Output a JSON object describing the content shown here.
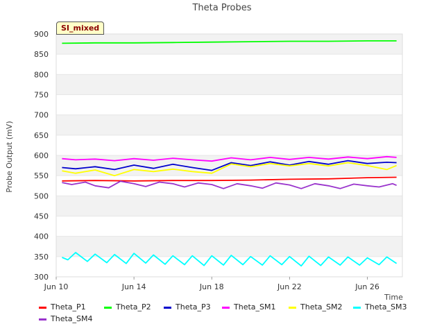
{
  "chart_data": {
    "type": "line",
    "title": "Theta Probes",
    "xlabel": "Time",
    "ylabel": "Probe Output (mV)",
    "ylim": [
      300,
      900
    ],
    "y_ticks": [
      "300",
      "350",
      "400",
      "450",
      "500",
      "550",
      "600",
      "650",
      "700",
      "750",
      "800",
      "850",
      "900"
    ],
    "x_ticks": [
      {
        "label": "Jun 10",
        "day": 10
      },
      {
        "label": "Jun 14",
        "day": 14
      },
      {
        "label": "Jun 18",
        "day": 18
      },
      {
        "label": "Jun 22",
        "day": 22
      },
      {
        "label": "Jun 26",
        "day": 26
      }
    ],
    "xlim_days": [
      10,
      27.8
    ],
    "grid": "horizontal alternating bands",
    "legend_position": "bottom",
    "badge": "SI_mixed",
    "series": [
      {
        "name": "Theta_P1",
        "color": "#ff0000",
        "x_days": [
          10.3,
          12,
          14,
          16,
          18,
          20,
          22,
          24,
          26,
          27.5
        ],
        "values": [
          537,
          538,
          537,
          538,
          538,
          539,
          541,
          542,
          545,
          546
        ]
      },
      {
        "name": "Theta_P2",
        "color": "#00ff00",
        "x_days": [
          10.3,
          12,
          14,
          16,
          18,
          20,
          22,
          24,
          26,
          27.5
        ],
        "values": [
          877,
          878,
          878,
          879,
          880,
          881,
          882,
          882,
          883,
          883
        ]
      },
      {
        "name": "Theta_P3",
        "color": "#0000cc",
        "x_days": [
          10.3,
          11,
          12,
          13,
          14,
          15,
          16,
          17,
          18,
          19,
          20,
          21,
          22,
          23,
          24,
          25,
          26,
          27,
          27.5
        ],
        "values": [
          570,
          567,
          572,
          565,
          576,
          568,
          578,
          570,
          563,
          582,
          575,
          584,
          576,
          585,
          578,
          587,
          580,
          583,
          582
        ]
      },
      {
        "name": "Theta_SM1",
        "color": "#ff00ff",
        "x_days": [
          10.3,
          11,
          12,
          13,
          14,
          15,
          16,
          17,
          18,
          19,
          20,
          21,
          22,
          23,
          24,
          25,
          26,
          27,
          27.5
        ],
        "values": [
          592,
          589,
          591,
          587,
          592,
          588,
          593,
          589,
          586,
          594,
          589,
          595,
          590,
          595,
          591,
          596,
          592,
          597,
          595
        ]
      },
      {
        "name": "Theta_SM2",
        "color": "#ffff00",
        "x_days": [
          10.3,
          11,
          12,
          13,
          14,
          15,
          16,
          17,
          18,
          19,
          20,
          21,
          22,
          23,
          24,
          25,
          26,
          27,
          27.5
        ],
        "values": [
          562,
          556,
          564,
          550,
          565,
          560,
          566,
          560,
          556,
          579,
          572,
          580,
          574,
          580,
          574,
          582,
          575,
          565,
          575
        ]
      },
      {
        "name": "Theta_SM3",
        "color": "#00ffff",
        "x_days": [
          10.3,
          10.6,
          11,
          11.6,
          12,
          12.6,
          13,
          13.6,
          14,
          14.6,
          15,
          15.6,
          16,
          16.6,
          17,
          17.6,
          18,
          18.6,
          19,
          19.6,
          20,
          20.6,
          21,
          21.6,
          22,
          22.6,
          23,
          23.6,
          24,
          24.6,
          25,
          25.6,
          26,
          26.6,
          27,
          27.5
        ],
        "values": [
          348,
          342,
          360,
          338,
          356,
          335,
          355,
          333,
          358,
          334,
          354,
          331,
          352,
          330,
          352,
          328,
          352,
          329,
          353,
          330,
          350,
          329,
          352,
          330,
          350,
          327,
          351,
          328,
          349,
          329,
          349,
          329,
          347,
          330,
          349,
          333
        ]
      },
      {
        "name": "Theta_SM4",
        "color": "#9933cc",
        "x_days": [
          10.3,
          10.8,
          11.5,
          12,
          12.7,
          13.3,
          14,
          14.6,
          15.3,
          16,
          16.6,
          17.3,
          18,
          18.6,
          19.3,
          20,
          20.6,
          21.3,
          22,
          22.6,
          23.3,
          24,
          24.6,
          25.3,
          26,
          26.6,
          27.3,
          27.5
        ],
        "values": [
          533,
          528,
          534,
          525,
          520,
          536,
          530,
          523,
          534,
          530,
          522,
          532,
          528,
          518,
          530,
          525,
          519,
          532,
          527,
          518,
          530,
          525,
          518,
          529,
          525,
          522,
          530,
          526
        ]
      }
    ]
  }
}
